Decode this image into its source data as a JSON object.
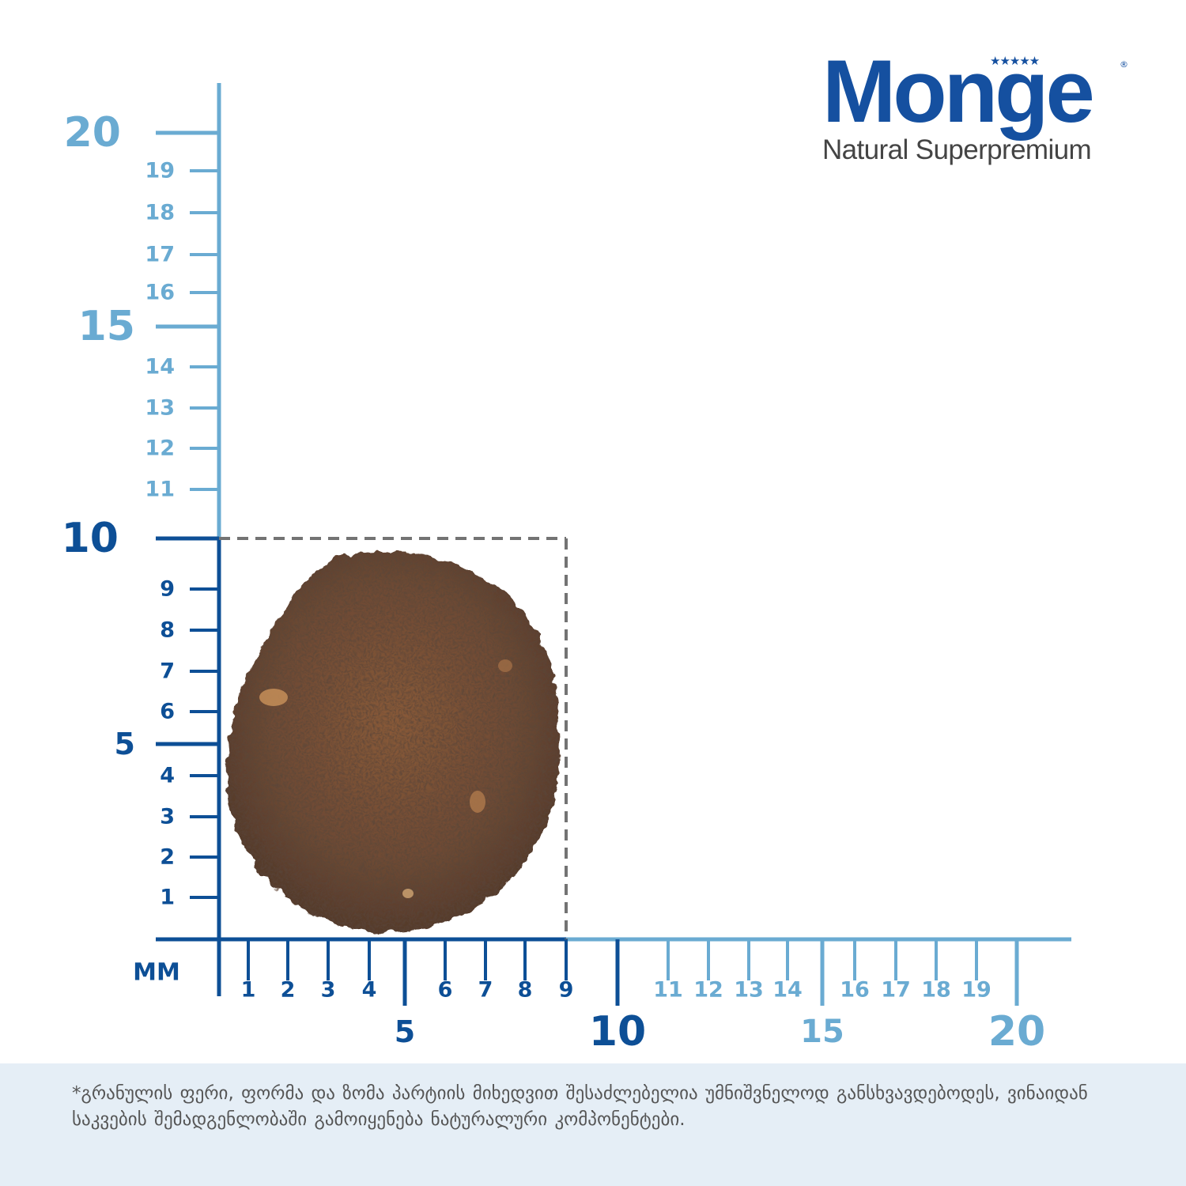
{
  "brand": {
    "name": "Monge",
    "tagline": "Natural Superpremium",
    "stars": "★★★★★",
    "registered_mark": "®"
  },
  "ruler": {
    "unit_label": "MM",
    "colors": {
      "dark": "#0d4f96",
      "light": "#6aabd2",
      "dashed_box": "#737373"
    },
    "vertical_small_labels": [
      "1",
      "2",
      "3",
      "4",
      "6",
      "7",
      "8",
      "9",
      "11",
      "12",
      "13",
      "14",
      "16",
      "17",
      "18",
      "19"
    ],
    "vertical_big_labels": [
      "5",
      "10",
      "15",
      "20"
    ],
    "horizontal_small_labels": [
      "1",
      "2",
      "3",
      "4",
      "6",
      "7",
      "8",
      "9",
      "11",
      "12",
      "13",
      "14",
      "16",
      "17",
      "18",
      "19"
    ],
    "horizontal_big_labels": [
      "5",
      "10",
      "15",
      "20"
    ],
    "kibble_box_size_mm": 9
  },
  "disclaimer": {
    "text": "*გრანულის ფერი, ფორმა და ზომა პარტიის მიხედვით შესაძლებელია უმნიშვნელოდ განსხვავდებოდეს,  ვინაიდან საკვების შემადგენლობაში გამოიყენება ნატურალური კომპონენტები."
  }
}
